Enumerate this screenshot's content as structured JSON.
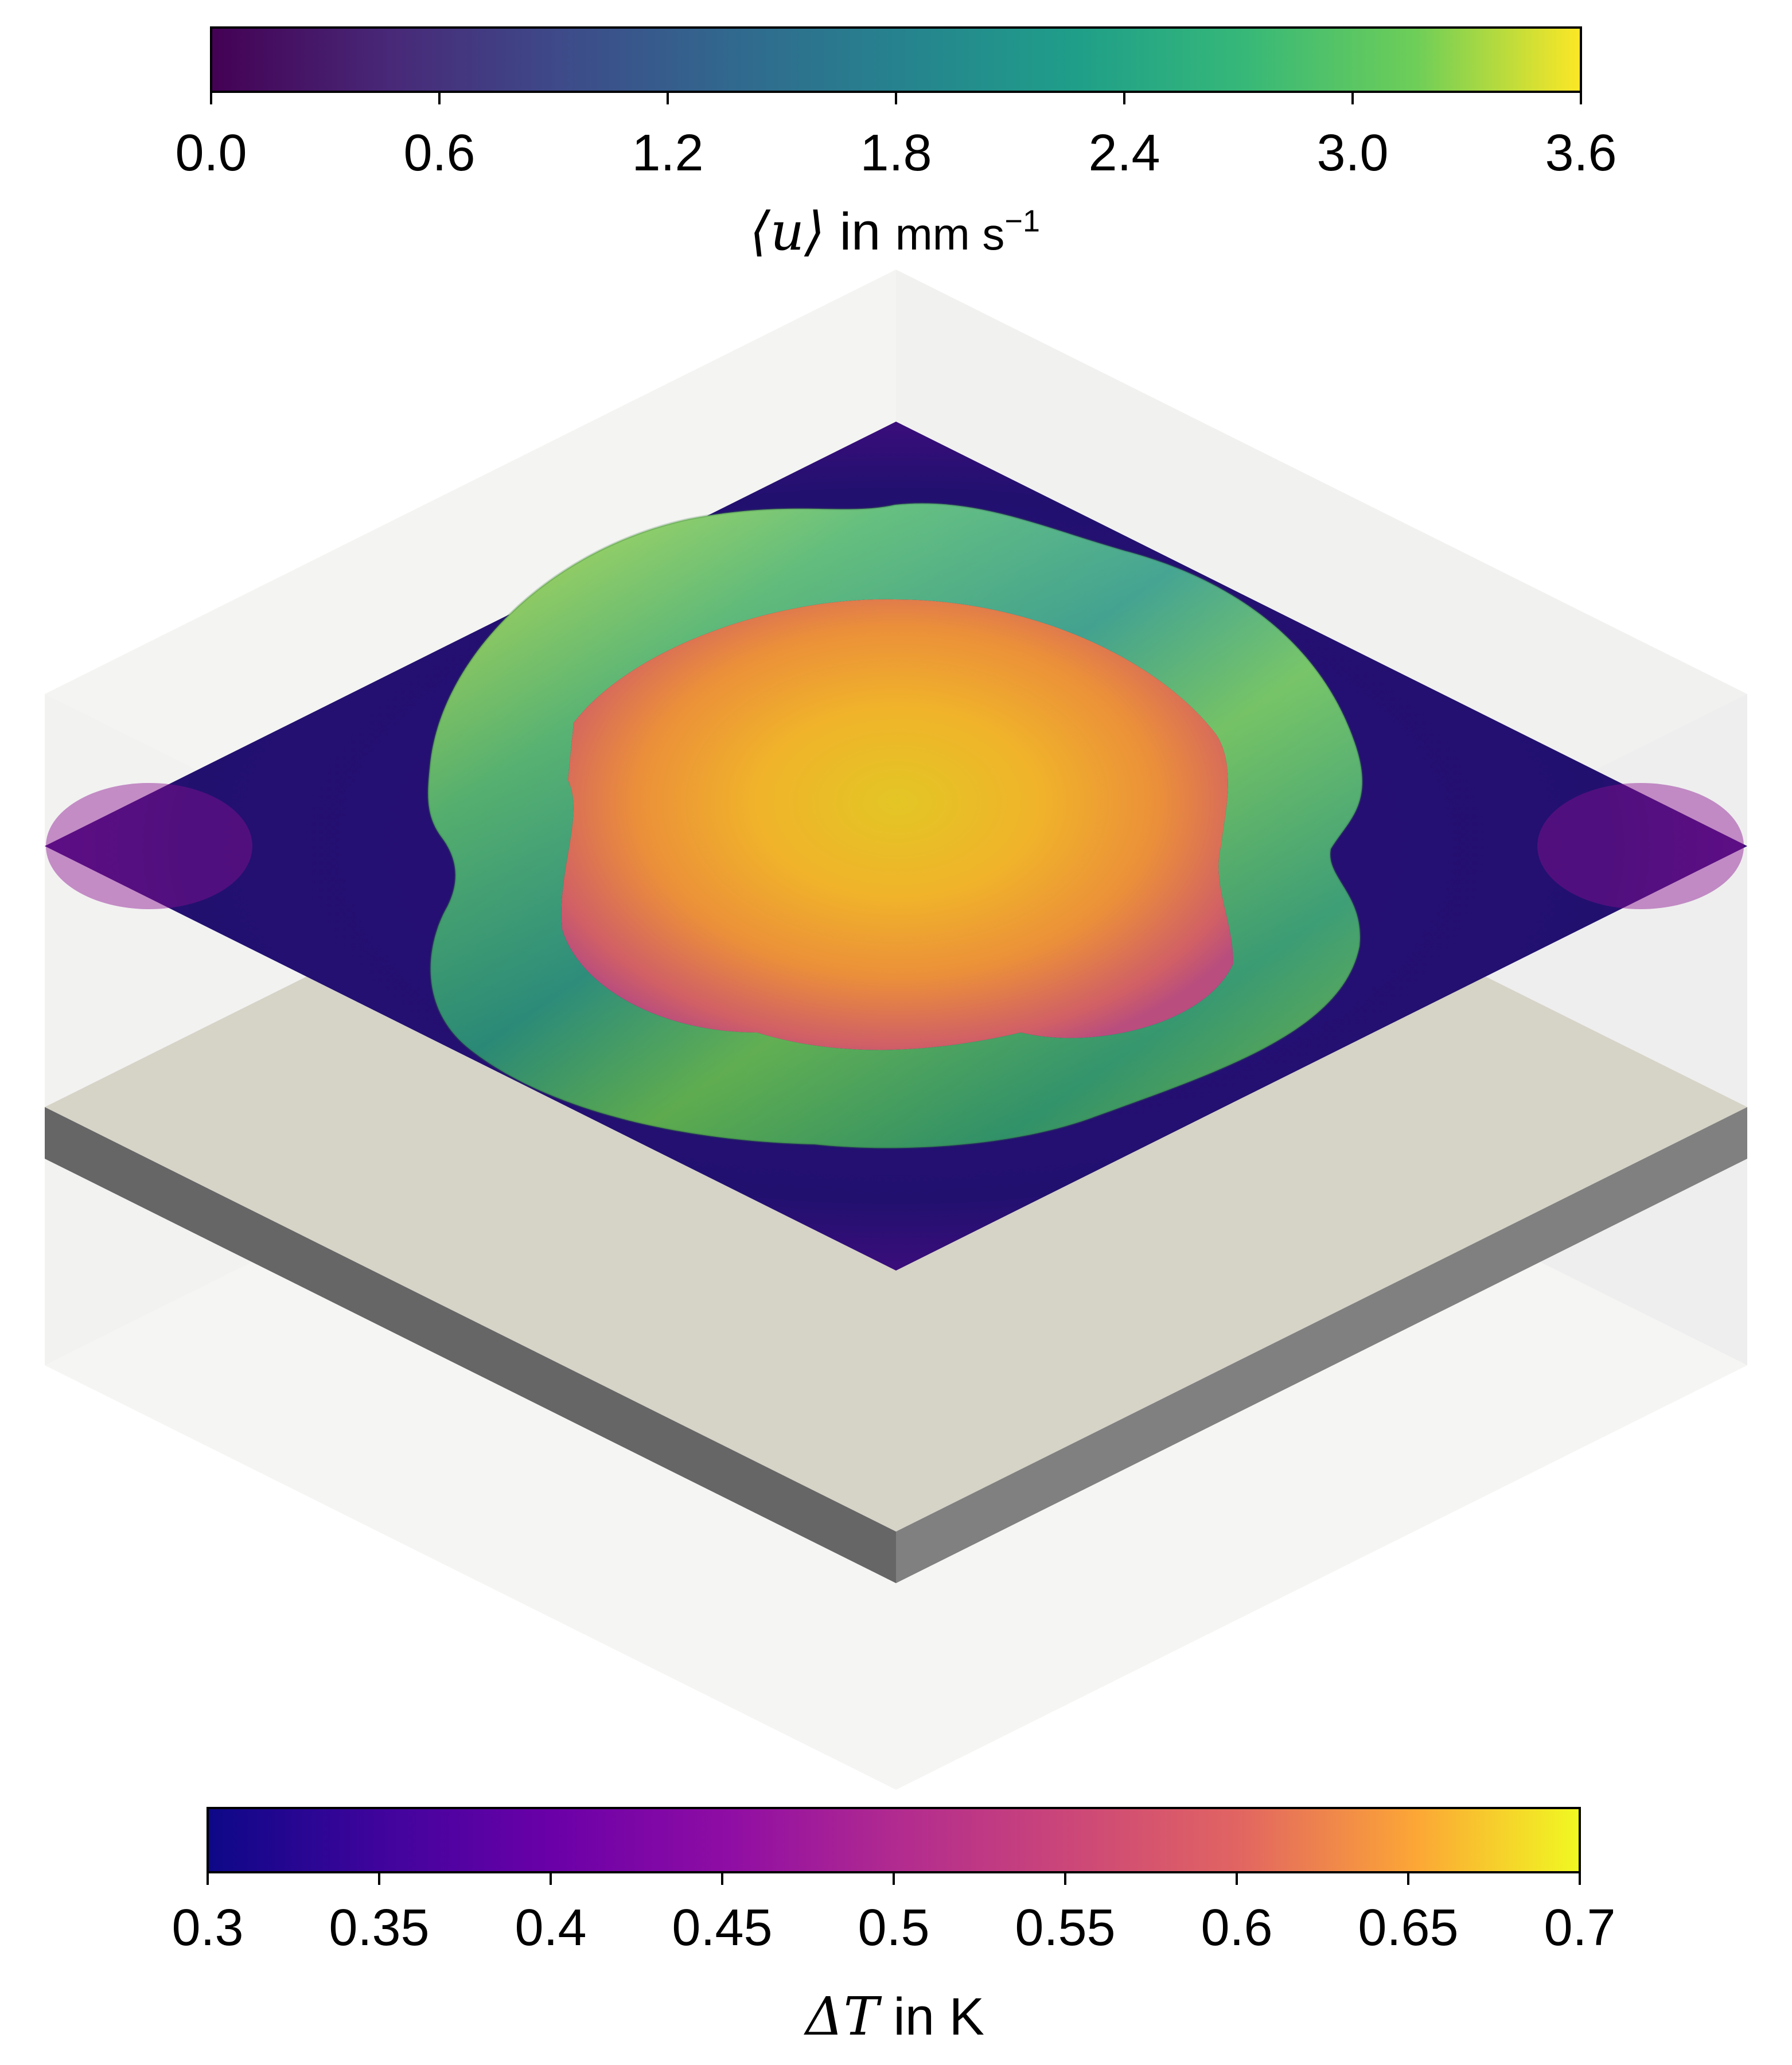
{
  "top_colorbar": {
    "colormap": "viridis",
    "ticks": [
      "0.0",
      "0.6",
      "1.2",
      "1.8",
      "2.4",
      "3.0",
      "3.6"
    ],
    "title_symbol": "⟨u⟩",
    "title_in": "in",
    "title_unit": "mm s",
    "title_exp": "−1",
    "range": [
      0.0,
      3.6
    ]
  },
  "bottom_colorbar": {
    "colormap": "plasma",
    "ticks": [
      "0.3",
      "0.35",
      "0.4",
      "0.45",
      "0.5",
      "0.55",
      "0.6",
      "0.65",
      "0.7"
    ],
    "title_symbol": "ΔT",
    "title_in": "in",
    "title_unit": "K",
    "range": [
      0.3,
      0.7
    ]
  },
  "colors": {
    "box_face_light": "#f4f4f2",
    "box_face_side": "#efefef",
    "heated_plate_top": "#d6d3c7",
    "heated_plate_left": "#666667",
    "heated_plate_right": "#808080",
    "temperature_slice_base": "#2b0d7a"
  }
}
